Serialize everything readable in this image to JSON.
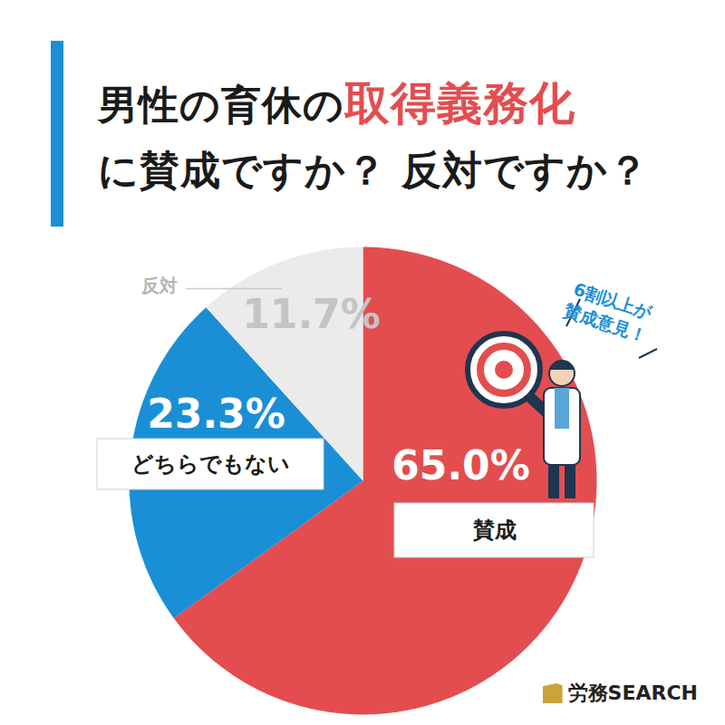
{
  "chart_data": {
    "type": "pie",
    "title": "男性の育休の取得義務化\nに賛成ですか？ 反対ですか？",
    "title_emphasis": "取得義務化",
    "categories": [
      "賛成",
      "どちらでもない",
      "反対"
    ],
    "values": [
      65.0,
      23.3,
      11.7
    ],
    "value_labels": [
      "65.0%",
      "23.3%",
      "11.7%"
    ],
    "colors": [
      "#e34d4f",
      "#1a8fd5",
      "#ebebeb"
    ],
    "data_labels": true,
    "annotation": "6割以上が\n賛成意見！",
    "source": "労務SEARCH"
  }
}
